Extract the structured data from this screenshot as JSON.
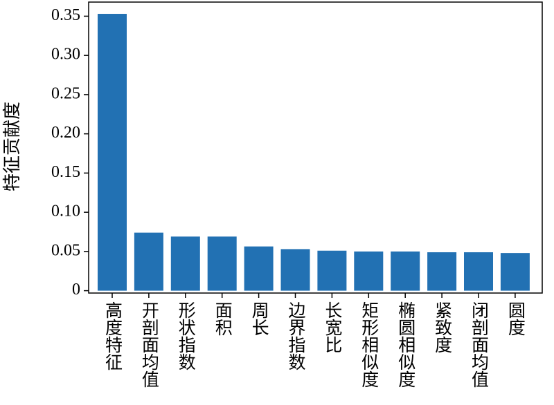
{
  "chart_data": {
    "type": "bar",
    "ylabel": "特征贡献度",
    "categories": [
      "高度特征",
      "开剖面均值",
      "形状指数",
      "面积",
      "周长",
      "边界指数",
      "长宽比",
      "矩形相似度",
      "椭圆相似度",
      "紧致度",
      "闭剖面均值",
      "圆度"
    ],
    "values": [
      0.353,
      0.074,
      0.069,
      0.069,
      0.0564,
      0.053,
      0.051,
      0.05,
      0.05,
      0.049,
      0.049,
      0.048
    ],
    "color": "#2271b3",
    "ylim": [
      -0.003,
      0.368
    ],
    "yticks": [
      0,
      0.05,
      {
        "value": 0.1,
        "label": "0.10"
      },
      0.15,
      {
        "value": 0.2,
        "label": "0.20"
      },
      0.25,
      {
        "value": 0.3,
        "label": "0.30"
      },
      0.35
    ],
    "grid": false
  }
}
